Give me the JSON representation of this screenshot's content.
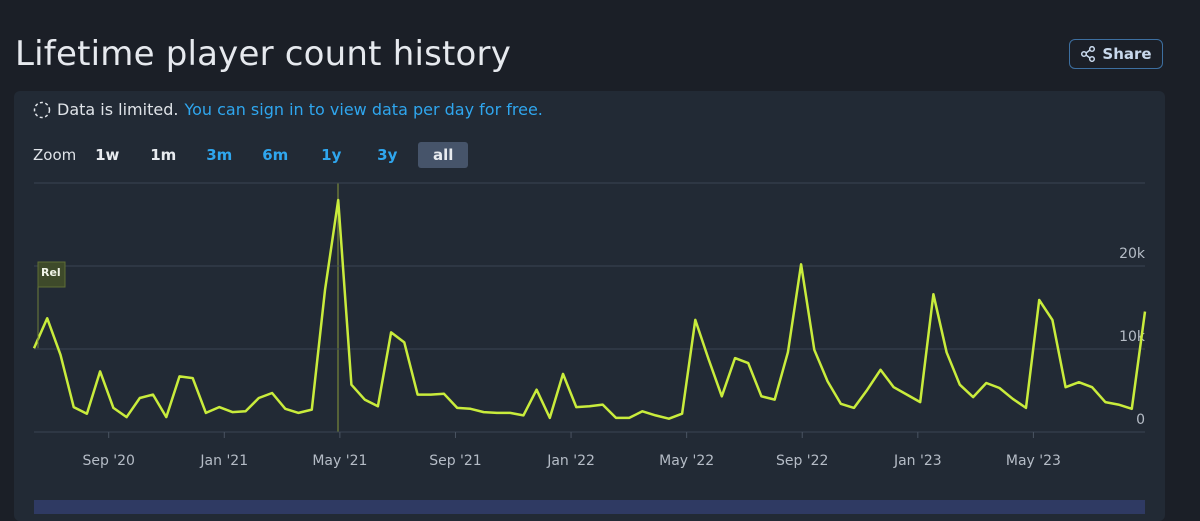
{
  "header": {
    "title": "Lifetime player count history",
    "share": "Share"
  },
  "notice": {
    "limited": "Data is limited.",
    "link": "You can sign in to view data per day for free."
  },
  "zoom": {
    "label": "Zoom",
    "options": [
      "1w",
      "1m",
      "3m",
      "6m",
      "1y",
      "3y",
      "all"
    ]
  },
  "chart_data": {
    "type": "line",
    "values": [
      10100,
      13700,
      9300,
      3000,
      2200,
      7300,
      2900,
      1800,
      4100,
      4500,
      1800,
      6700,
      6500,
      2300,
      3000,
      2400,
      2500,
      4100,
      4700,
      2800,
      2300,
      2700,
      17100,
      27950,
      5700,
      3900,
      3100,
      12000,
      10800,
      4500,
      4500,
      4600,
      2900,
      2800,
      2400,
      2300,
      2300,
      2000,
      5100,
      1700,
      7000,
      3000,
      3100,
      3300,
      1700,
      1700,
      2500,
      2000,
      1600,
      2200,
      13500,
      8800,
      4300,
      8900,
      8300,
      4300,
      3900,
      9600,
      20200,
      9900,
      6100,
      3400,
      2900,
      5100,
      7500,
      5400,
      4500,
      3600,
      16600,
      9600,
      5700,
      4200,
      5900,
      5300,
      4000,
      2900,
      15900,
      13500,
      5400,
      6000,
      5400,
      3600,
      3300,
      2800,
      14500
    ],
    "color": "#c9ec3c",
    "xlim": [
      "2020-06",
      "2023-09"
    ],
    "xticks": [
      {
        "value": "2020-09",
        "label": "Sep '20"
      },
      {
        "value": "2021-01",
        "label": "Jan '21"
      },
      {
        "value": "2021-05",
        "label": "May '21"
      },
      {
        "value": "2021-09",
        "label": "Sep '21"
      },
      {
        "value": "2022-01",
        "label": "Jan '22"
      },
      {
        "value": "2022-05",
        "label": "May '22"
      },
      {
        "value": "2022-09",
        "label": "Sep '22"
      },
      {
        "value": "2023-01",
        "label": "Jan '23"
      },
      {
        "value": "2023-05",
        "label": "May '23"
      }
    ],
    "ylim": [
      0,
      30000
    ],
    "yticks": [
      0,
      {
        "value": 10000,
        "label": "10k"
      },
      {
        "value": 20000,
        "label": "20k"
      }
    ],
    "grid": true,
    "annotation": "Rel"
  }
}
